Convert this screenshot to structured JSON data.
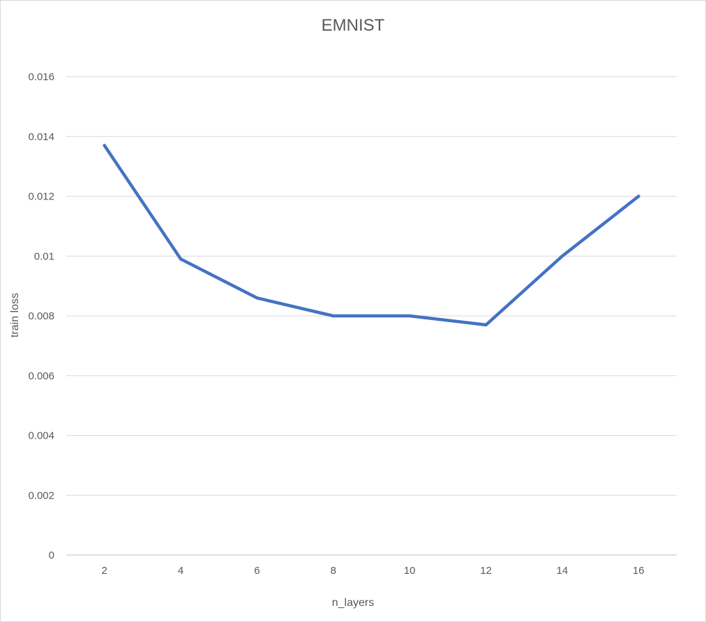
{
  "chart_data": {
    "type": "line",
    "title": "EMNIST",
    "xlabel": "n_layers",
    "ylabel": "train loss",
    "categories": [
      "2",
      "4",
      "6",
      "8",
      "10",
      "12",
      "14",
      "16"
    ],
    "yticks": [
      "0",
      "0.002",
      "0.004",
      "0.006",
      "0.008",
      "0.01",
      "0.012",
      "0.014",
      "0.016"
    ],
    "ylim": [
      0,
      0.016
    ],
    "grid": true,
    "legend": "none",
    "series": [
      {
        "color": "#4472C4",
        "values": [
          0.0137,
          0.0099,
          0.0086,
          0.008,
          0.008,
          0.0077,
          0.01,
          0.012
        ]
      }
    ]
  }
}
